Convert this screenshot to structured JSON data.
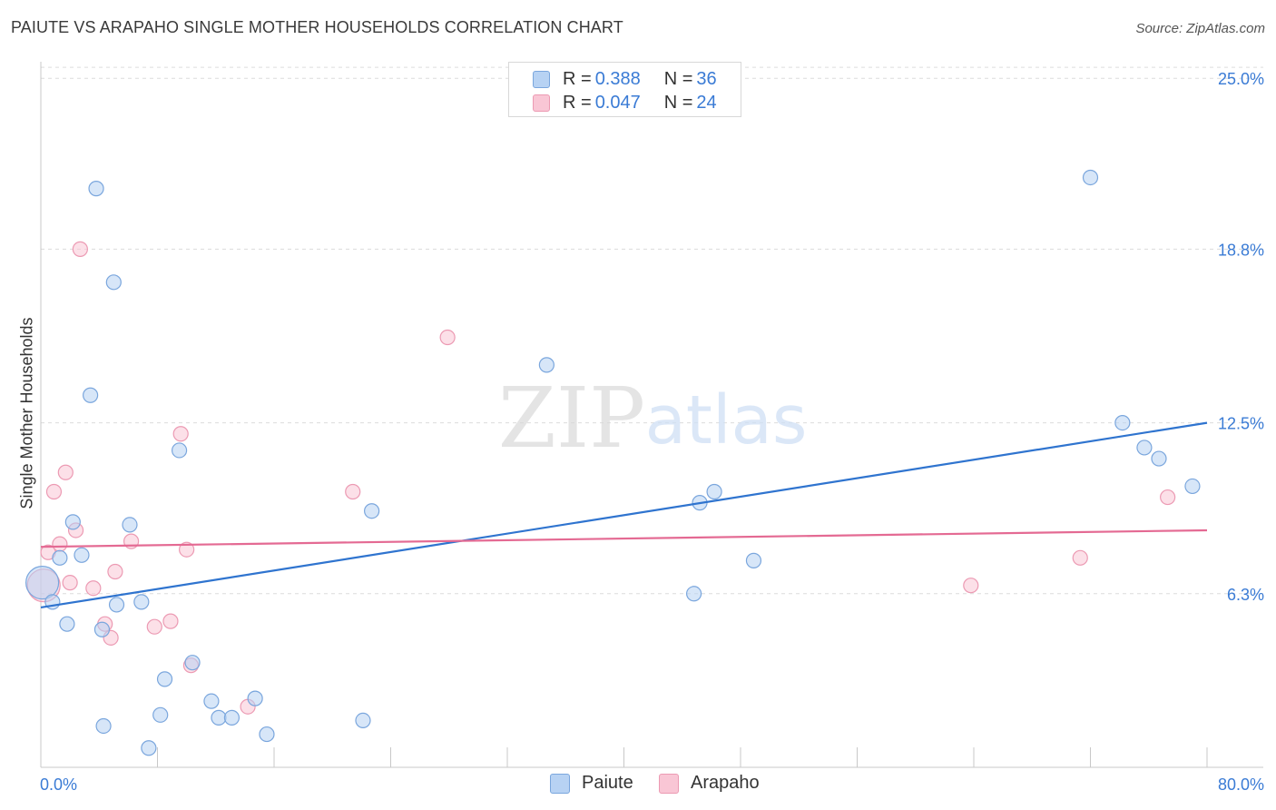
{
  "title": "PAIUTE VS ARAPAHO SINGLE MOTHER HOUSEHOLDS CORRELATION CHART",
  "source": "Source: ZipAtlas.com",
  "watermark": {
    "zip": "ZIP",
    "atlas": "atlas"
  },
  "legend": {
    "rows": [
      {
        "r_label": "R =",
        "r_value": "0.388",
        "n_label": "N =",
        "n_value": "36"
      },
      {
        "r_label": "R =",
        "r_value": "0.047",
        "n_label": "N =",
        "n_value": "24"
      }
    ]
  },
  "colors": {
    "paiute_fill": "#b7d2f3",
    "paiute_stroke": "#7aa6dd",
    "paiute_line": "#2f74cf",
    "arapaho_fill": "#f9c6d5",
    "arapaho_stroke": "#ec9ab3",
    "arapaho_line": "#e46a93",
    "tick_text": "#3a7bd5",
    "grid": "#dcdcdc"
  },
  "chart_data": {
    "type": "scatter",
    "title": "PAIUTE VS ARAPAHO SINGLE MOTHER HOUSEHOLDS CORRELATION CHART",
    "xlabel": "",
    "ylabel": "Single Mother Households",
    "xlim": [
      0,
      80
    ],
    "ylim": [
      0,
      25.6
    ],
    "x_tick_labels": [
      {
        "value": 0,
        "label": "0.0%"
      },
      {
        "value": 80,
        "label": "80.0%"
      }
    ],
    "y_tick_labels": [
      {
        "value": 6.3,
        "label": "6.3%"
      },
      {
        "value": 12.5,
        "label": "12.5%"
      },
      {
        "value": 18.8,
        "label": "18.8%"
      },
      {
        "value": 25.0,
        "label": "25.0%"
      }
    ],
    "series": [
      {
        "name": "Paiute",
        "color": "#b7d2f3",
        "trend": {
          "x": [
            0,
            80
          ],
          "y": [
            5.8,
            12.5
          ]
        },
        "points": [
          {
            "x": 0.1,
            "y": 6.7,
            "big": true
          },
          {
            "x": 0.8,
            "y": 6.0
          },
          {
            "x": 1.3,
            "y": 7.6
          },
          {
            "x": 1.8,
            "y": 5.2
          },
          {
            "x": 2.2,
            "y": 8.9
          },
          {
            "x": 2.8,
            "y": 7.7
          },
          {
            "x": 3.4,
            "y": 13.5
          },
          {
            "x": 3.8,
            "y": 21.0
          },
          {
            "x": 4.2,
            "y": 5.0
          },
          {
            "x": 4.3,
            "y": 1.5
          },
          {
            "x": 5.0,
            "y": 17.6
          },
          {
            "x": 5.2,
            "y": 5.9
          },
          {
            "x": 6.1,
            "y": 8.8
          },
          {
            "x": 6.9,
            "y": 6.0
          },
          {
            "x": 7.4,
            "y": 0.7
          },
          {
            "x": 8.2,
            "y": 1.9
          },
          {
            "x": 8.5,
            "y": 3.2
          },
          {
            "x": 9.5,
            "y": 11.5
          },
          {
            "x": 10.4,
            "y": 3.8
          },
          {
            "x": 11.7,
            "y": 2.4
          },
          {
            "x": 12.2,
            "y": 1.8
          },
          {
            "x": 13.1,
            "y": 1.8
          },
          {
            "x": 14.7,
            "y": 2.5
          },
          {
            "x": 15.5,
            "y": 1.2
          },
          {
            "x": 22.1,
            "y": 1.7
          },
          {
            "x": 22.7,
            "y": 9.3
          },
          {
            "x": 34.7,
            "y": 14.6
          },
          {
            "x": 44.8,
            "y": 6.3
          },
          {
            "x": 45.2,
            "y": 9.6
          },
          {
            "x": 46.2,
            "y": 10.0
          },
          {
            "x": 48.9,
            "y": 7.5
          },
          {
            "x": 72.0,
            "y": 21.4
          },
          {
            "x": 74.2,
            "y": 12.5
          },
          {
            "x": 75.7,
            "y": 11.6
          },
          {
            "x": 76.7,
            "y": 11.2
          },
          {
            "x": 79.0,
            "y": 10.2
          }
        ]
      },
      {
        "name": "Arapaho",
        "color": "#f9c6d5",
        "trend": {
          "x": [
            0,
            80
          ],
          "y": [
            8.0,
            8.6
          ]
        },
        "points": [
          {
            "x": 0.2,
            "y": 6.6,
            "big": true
          },
          {
            "x": 0.5,
            "y": 7.8
          },
          {
            "x": 0.9,
            "y": 10.0
          },
          {
            "x": 1.3,
            "y": 8.1
          },
          {
            "x": 1.7,
            "y": 10.7
          },
          {
            "x": 2.0,
            "y": 6.7
          },
          {
            "x": 2.4,
            "y": 8.6
          },
          {
            "x": 2.7,
            "y": 18.8
          },
          {
            "x": 3.6,
            "y": 6.5
          },
          {
            "x": 4.4,
            "y": 5.2
          },
          {
            "x": 4.8,
            "y": 4.7
          },
          {
            "x": 5.1,
            "y": 7.1
          },
          {
            "x": 6.2,
            "y": 8.2
          },
          {
            "x": 7.8,
            "y": 5.1
          },
          {
            "x": 8.9,
            "y": 5.3
          },
          {
            "x": 9.6,
            "y": 12.1
          },
          {
            "x": 10.0,
            "y": 7.9
          },
          {
            "x": 10.3,
            "y": 3.7
          },
          {
            "x": 14.2,
            "y": 2.2
          },
          {
            "x": 21.4,
            "y": 10.0
          },
          {
            "x": 27.9,
            "y": 15.6
          },
          {
            "x": 63.8,
            "y": 6.6
          },
          {
            "x": 71.3,
            "y": 7.6
          },
          {
            "x": 77.3,
            "y": 9.8
          }
        ]
      }
    ]
  }
}
